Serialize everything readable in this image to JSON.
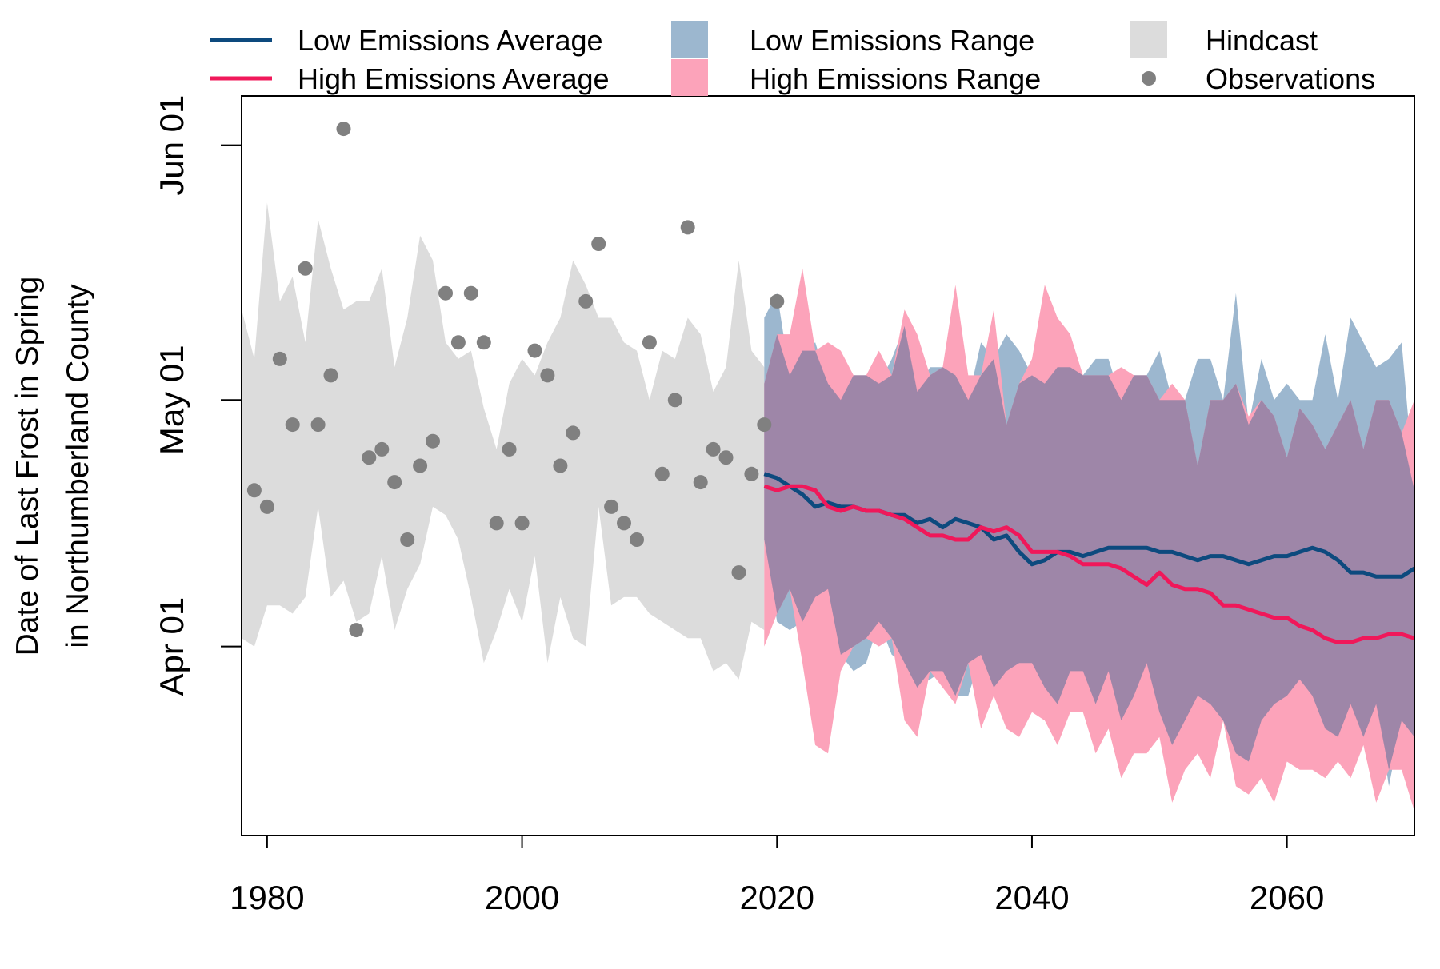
{
  "chart_data": {
    "type": "line",
    "title": "",
    "xlabel": "",
    "ylabel": [
      "Date of Last Frost in Spring",
      "in Northumberland County"
    ],
    "xlim": [
      1978,
      2070
    ],
    "ylim_day_of_year": [
      68,
      158
    ],
    "x_ticks": [
      1980,
      2000,
      2020,
      2040,
      2060
    ],
    "y_ticks": [
      {
        "label": "Apr 01",
        "day_of_year": 91
      },
      {
        "label": "May 01",
        "day_of_year": 121
      },
      {
        "label": "Jun 01",
        "day_of_year": 152
      }
    ],
    "legend_position": "top",
    "legend": [
      {
        "label": "Low Emissions Average",
        "kind": "line",
        "color": "#0d4a7e"
      },
      {
        "label": "High Emissions Average",
        "kind": "line",
        "color": "#f0185a"
      },
      {
        "label": "Low Emissions Range",
        "kind": "fill",
        "color": "#9cb7cf"
      },
      {
        "label": "High Emissions Range",
        "kind": "fill",
        "color": "#fca3ba"
      },
      {
        "label": "Hindcast",
        "kind": "fill",
        "color": "#dcdcdc"
      },
      {
        "label": "Observations",
        "kind": "point",
        "color": "#808080"
      }
    ],
    "hindcast": {
      "name": "Hindcast",
      "color": "#dcdcdc",
      "x": [
        1978,
        1979,
        1980,
        1981,
        1982,
        1983,
        1984,
        1985,
        1986,
        1987,
        1988,
        1989,
        1990,
        1991,
        1992,
        1993,
        1994,
        1995,
        1996,
        1997,
        1998,
        1999,
        2000,
        2001,
        2002,
        2003,
        2004,
        2005,
        2006,
        2007,
        2008,
        2009,
        2010,
        2011,
        2012,
        2013,
        2014,
        2015,
        2016,
        2017,
        2018,
        2019
      ],
      "upper": [
        132,
        126,
        145,
        133,
        136,
        128,
        143,
        137,
        132,
        133,
        133,
        137,
        125,
        131,
        141,
        138,
        128,
        126,
        127,
        120,
        115,
        123,
        126,
        124,
        128,
        131,
        138,
        135,
        131,
        131,
        128,
        127,
        121,
        127,
        126,
        131,
        129,
        122,
        125,
        138,
        127,
        125
      ],
      "lower": [
        92,
        91,
        96,
        96,
        95,
        97,
        108,
        97,
        99,
        94,
        95,
        102,
        93,
        98,
        101,
        108,
        107,
        104,
        97,
        89,
        93,
        98,
        94,
        102,
        89,
        97,
        92,
        91,
        108,
        96,
        97,
        97,
        95,
        94,
        93,
        92,
        92,
        88,
        89,
        87,
        94,
        93
      ]
    },
    "observations": {
      "name": "Observations",
      "color": "#808080",
      "x": [
        1979,
        1980,
        1981,
        1982,
        1983,
        1984,
        1985,
        1986,
        1987,
        1988,
        1989,
        1990,
        1991,
        1992,
        1993,
        1994,
        1995,
        1996,
        1997,
        1998,
        1999,
        2000,
        2001,
        2002,
        2003,
        2004,
        2005,
        2006,
        2007,
        2008,
        2009,
        2010,
        2011,
        2012,
        2013,
        2014,
        2015,
        2016,
        2017,
        2018,
        2019,
        2020
      ],
      "y": [
        110,
        108,
        126,
        118,
        137,
        118,
        124,
        154,
        93,
        114,
        115,
        111,
        104,
        113,
        116,
        134,
        128,
        134,
        128,
        106,
        115,
        106,
        127,
        124,
        113,
        117,
        133,
        140,
        108,
        106,
        104,
        128,
        112,
        121,
        142,
        111,
        115,
        114,
        100,
        112,
        118,
        133
      ]
    },
    "projection_x": [
      2019,
      2020,
      2021,
      2022,
      2023,
      2024,
      2025,
      2026,
      2027,
      2028,
      2029,
      2030,
      2031,
      2032,
      2033,
      2034,
      2035,
      2036,
      2037,
      2038,
      2039,
      2040,
      2041,
      2042,
      2043,
      2044,
      2045,
      2046,
      2047,
      2048,
      2049,
      2050,
      2051,
      2052,
      2053,
      2054,
      2055,
      2056,
      2057,
      2058,
      2059,
      2060,
      2061,
      2062,
      2063,
      2064,
      2065,
      2066,
      2067,
      2068,
      2069,
      2070
    ],
    "series": [
      {
        "name": "Low Emissions Average",
        "color": "#0d4a7e",
        "values": [
          112,
          111.5,
          110.5,
          109.5,
          108,
          108.5,
          108,
          108,
          107.5,
          107.5,
          107,
          107,
          106,
          106.5,
          105.5,
          106.5,
          106,
          105.5,
          104,
          104.5,
          102.5,
          101,
          101.5,
          102.5,
          102.5,
          102,
          102.5,
          103,
          103,
          103,
          103,
          102.5,
          102.5,
          102,
          101.5,
          102,
          102,
          101.5,
          101,
          101.5,
          102,
          102,
          102.5,
          103,
          102.5,
          101.5,
          100,
          100,
          99.5,
          99.5,
          99.5,
          100.5
        ]
      },
      {
        "name": "High Emissions Average",
        "color": "#f0185a",
        "values": [
          110.5,
          110,
          110.5,
          110.5,
          110,
          108,
          107.5,
          108,
          107.5,
          107.5,
          107,
          106.5,
          105.5,
          104.5,
          104.5,
          104,
          104,
          105.5,
          105,
          105.5,
          104.5,
          102.5,
          102.5,
          102.5,
          102,
          101,
          101,
          101,
          100.5,
          99.5,
          98.5,
          100,
          98.5,
          98,
          98,
          97.5,
          96,
          96,
          95.5,
          95,
          94.5,
          94.5,
          93.5,
          93,
          92,
          91.5,
          91.5,
          92,
          92,
          92.5,
          92.5,
          92
        ]
      }
    ],
    "ranges": [
      {
        "name": "Low Emissions Range",
        "color": "#9cb7cf",
        "upper": [
          131,
          134,
          124,
          127,
          128,
          123,
          121,
          124,
          124,
          123,
          126,
          130,
          122,
          125,
          125,
          124,
          121,
          128,
          126,
          129,
          127,
          124,
          123,
          125,
          125,
          124,
          126,
          126,
          121,
          124,
          124,
          127,
          121,
          121,
          126,
          126,
          121,
          134,
          118,
          126,
          121,
          123,
          121,
          121,
          129,
          121,
          131,
          128,
          125,
          126,
          128,
          110
        ],
        "lower": [
          104,
          94,
          93,
          94,
          97,
          98,
          90,
          88,
          89,
          94,
          90,
          89,
          86,
          87,
          88,
          85,
          85,
          90,
          86,
          88,
          89,
          89,
          86,
          84,
          88,
          88,
          84,
          88,
          82,
          85,
          89,
          83,
          79,
          82,
          85,
          84,
          82,
          78,
          77,
          82,
          84,
          85,
          87,
          85,
          81,
          80,
          84,
          80,
          84,
          74,
          82,
          80
        ]
      },
      {
        "name": "High Emissions Range",
        "color": "#fca3ba",
        "upper": [
          123,
          129,
          129,
          137,
          127,
          128,
          127,
          124,
          124,
          127,
          124,
          132,
          129,
          124,
          125,
          135,
          124,
          124,
          132,
          118,
          123,
          126,
          135,
          131,
          129,
          124,
          124,
          124,
          125,
          124,
          124,
          121,
          123,
          121,
          113,
          121,
          121,
          123,
          119,
          121,
          119,
          114,
          120,
          118,
          115,
          118,
          121,
          115,
          121,
          121,
          117,
          121
        ],
        "lower": [
          91,
          95,
          98,
          89,
          79,
          78,
          88,
          91,
          92,
          91,
          92,
          82,
          80,
          88,
          86,
          84,
          89,
          81,
          85,
          81,
          80,
          83,
          82,
          79,
          83,
          83,
          78,
          81,
          75,
          78,
          78,
          80,
          72,
          76,
          78,
          75,
          82,
          74,
          73,
          75,
          72,
          77,
          76,
          76,
          75,
          77,
          75,
          79,
          72,
          76,
          76,
          71
        ]
      }
    ]
  }
}
